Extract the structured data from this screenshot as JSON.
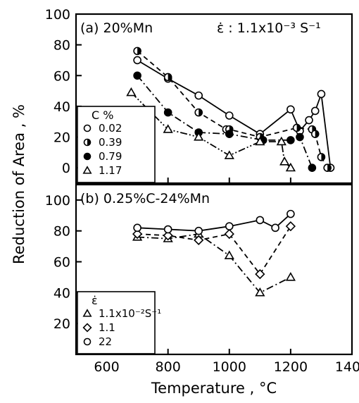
{
  "chart_data": [
    {
      "type": "line",
      "panel_label": "(a) 20%Mn",
      "annotation": "ε̇ : 1.1x10⁻³ S⁻¹",
      "ylabel": "Reduction of Area , %",
      "xlabel": "",
      "xlim": [
        500,
        1400
      ],
      "ylim": [
        -10,
        100
      ],
      "yticks": [
        0,
        20,
        40,
        60,
        80,
        100
      ],
      "xticks": [
        600,
        800,
        1000,
        1200,
        1400
      ],
      "grid": false,
      "legend": {
        "title": "C %",
        "placement": "bottom-left"
      },
      "series": [
        {
          "name": "0.02",
          "marker": "open-circle",
          "line": "solid",
          "x": [
            700,
            800,
            900,
            1000,
            1100,
            1200,
            1230,
            1260,
            1280,
            1300,
            1330
          ],
          "y": [
            70,
            58,
            47,
            34,
            22,
            38,
            24,
            31,
            37,
            48,
            0
          ]
        },
        {
          "name": "0.39",
          "marker": "half-circle",
          "line": "dashed",
          "x": [
            700,
            800,
            900,
            990,
            1000,
            1100,
            1220,
            1270,
            1280,
            1300,
            1320
          ],
          "y": [
            76,
            59,
            36,
            25,
            25,
            20,
            26,
            25,
            22,
            7,
            0
          ]
        },
        {
          "name": "0.79",
          "marker": "filled-circle",
          "line": "dash-dot",
          "x": [
            700,
            800,
            900,
            1000,
            1110,
            1200,
            1230,
            1270
          ],
          "y": [
            60,
            36,
            23,
            22,
            18,
            18,
            20,
            0
          ]
        },
        {
          "name": "1.17",
          "marker": "open-triangle",
          "line": "dash-dot-dot",
          "x": [
            680,
            800,
            900,
            1000,
            1100,
            1170,
            1180,
            1200
          ],
          "y": [
            49,
            25,
            20,
            8,
            17,
            17,
            4,
            0
          ]
        }
      ]
    },
    {
      "type": "line",
      "panel_label": "(b) 0.25%C-24%Mn",
      "ylabel": "Reduction of Area , %",
      "xlabel": "Temperature , °C",
      "xlim": [
        500,
        1400
      ],
      "ylim": [
        0,
        110
      ],
      "yticks": [
        20,
        40,
        60,
        80,
        100
      ],
      "xticks": [
        600,
        800,
        1000,
        1200,
        1400
      ],
      "grid": false,
      "legend": {
        "title": "ε̇",
        "placement": "bottom-left"
      },
      "series": [
        {
          "name": "1.1x10⁻²S⁻¹",
          "marker": "open-triangle",
          "line": "dash-dot",
          "x": [
            700,
            800,
            900,
            1000,
            1100,
            1200
          ],
          "y": [
            76,
            75,
            78,
            64,
            40,
            50
          ]
        },
        {
          "name": "1.1",
          "marker": "open-diamond",
          "line": "dashed",
          "x": [
            700,
            800,
            900,
            1000,
            1100,
            1200
          ],
          "y": [
            78,
            77,
            74,
            78,
            52,
            83
          ]
        },
        {
          "name": "22",
          "marker": "open-circle",
          "line": "solid",
          "x": [
            700,
            800,
            900,
            1000,
            1100,
            1150,
            1200
          ],
          "y": [
            82,
            81,
            80,
            83,
            87,
            82,
            91
          ]
        }
      ]
    }
  ]
}
